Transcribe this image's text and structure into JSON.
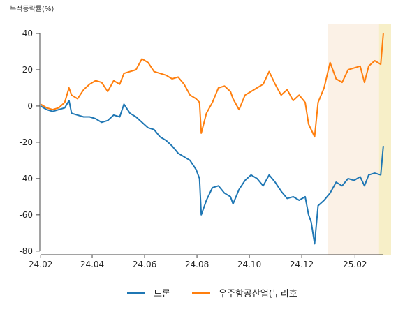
{
  "chart_data": {
    "type": "line",
    "y_unit_label": "누적등락률(%)",
    "x_tick_labels": [
      "24.02",
      "24.04",
      "24.06",
      "24.08",
      "24.10",
      "24.12",
      "25.02"
    ],
    "y_ticks": [
      40,
      20,
      0,
      -20,
      -40,
      -60,
      -80
    ],
    "xlim": [
      "2024-01-31",
      "2025-03-15"
    ],
    "ylim": [
      -82,
      45
    ],
    "grid": false,
    "legend_position": "bottom",
    "highlight_bands": [
      {
        "from": "2024-12-31",
        "to": "2025-03-15",
        "color": "#fbf1e6"
      },
      {
        "from": "2025-03-01",
        "to": "2025-03-15",
        "color": "#f7efc8"
      }
    ],
    "series": [
      {
        "name": "드론",
        "color": "#1f77b4",
        "points": [
          [
            "2024-02-01",
            0
          ],
          [
            "2024-02-08",
            -2
          ],
          [
            "2024-02-15",
            -3
          ],
          [
            "2024-02-22",
            -2
          ],
          [
            "2024-02-29",
            -1
          ],
          [
            "2024-03-05",
            3
          ],
          [
            "2024-03-08",
            -4
          ],
          [
            "2024-03-15",
            -5
          ],
          [
            "2024-03-22",
            -6
          ],
          [
            "2024-03-29",
            -6
          ],
          [
            "2024-04-05",
            -7
          ],
          [
            "2024-04-12",
            -9
          ],
          [
            "2024-04-19",
            -8
          ],
          [
            "2024-04-26",
            -5
          ],
          [
            "2024-05-03",
            -6
          ],
          [
            "2024-05-08",
            1
          ],
          [
            "2024-05-15",
            -4
          ],
          [
            "2024-05-22",
            -6
          ],
          [
            "2024-05-29",
            -9
          ],
          [
            "2024-06-05",
            -12
          ],
          [
            "2024-06-12",
            -13
          ],
          [
            "2024-06-19",
            -17
          ],
          [
            "2024-06-26",
            -19
          ],
          [
            "2024-07-03",
            -22
          ],
          [
            "2024-07-10",
            -26
          ],
          [
            "2024-07-17",
            -28
          ],
          [
            "2024-07-24",
            -30
          ],
          [
            "2024-07-31",
            -35
          ],
          [
            "2024-08-04",
            -40
          ],
          [
            "2024-08-06",
            -60
          ],
          [
            "2024-08-12",
            -52
          ],
          [
            "2024-08-19",
            -45
          ],
          [
            "2024-08-26",
            -44
          ],
          [
            "2024-09-02",
            -48
          ],
          [
            "2024-09-09",
            -50
          ],
          [
            "2024-09-12",
            -54
          ],
          [
            "2024-09-19",
            -46
          ],
          [
            "2024-09-26",
            -41
          ],
          [
            "2024-10-03",
            -38
          ],
          [
            "2024-10-10",
            -40
          ],
          [
            "2024-10-17",
            -44
          ],
          [
            "2024-10-24",
            -38
          ],
          [
            "2024-10-31",
            -42
          ],
          [
            "2024-11-07",
            -47
          ],
          [
            "2024-11-14",
            -51
          ],
          [
            "2024-11-21",
            -50
          ],
          [
            "2024-11-28",
            -52
          ],
          [
            "2024-12-05",
            -50
          ],
          [
            "2024-12-09",
            -60
          ],
          [
            "2024-12-12",
            -64
          ],
          [
            "2024-12-16",
            -76
          ],
          [
            "2024-12-20",
            -55
          ],
          [
            "2024-12-27",
            -52
          ],
          [
            "2025-01-03",
            -48
          ],
          [
            "2025-01-10",
            -42
          ],
          [
            "2025-01-17",
            -44
          ],
          [
            "2025-01-24",
            -40
          ],
          [
            "2025-01-31",
            -41
          ],
          [
            "2025-02-07",
            -39
          ],
          [
            "2025-02-12",
            -44
          ],
          [
            "2025-02-17",
            -38
          ],
          [
            "2025-02-24",
            -37
          ],
          [
            "2025-03-03",
            -38
          ],
          [
            "2025-03-06",
            -22
          ]
        ]
      },
      {
        "name": "우주항공산업(누리호",
        "color": "#ff7f0e",
        "points": [
          [
            "2024-02-01",
            1
          ],
          [
            "2024-02-08",
            -1
          ],
          [
            "2024-02-15",
            -2
          ],
          [
            "2024-02-22",
            -1
          ],
          [
            "2024-02-29",
            2
          ],
          [
            "2024-03-05",
            10
          ],
          [
            "2024-03-08",
            6
          ],
          [
            "2024-03-15",
            4
          ],
          [
            "2024-03-22",
            9
          ],
          [
            "2024-03-29",
            12
          ],
          [
            "2024-04-05",
            14
          ],
          [
            "2024-04-12",
            13
          ],
          [
            "2024-04-19",
            8
          ],
          [
            "2024-04-26",
            14
          ],
          [
            "2024-05-03",
            12
          ],
          [
            "2024-05-08",
            18
          ],
          [
            "2024-05-15",
            19
          ],
          [
            "2024-05-22",
            20
          ],
          [
            "2024-05-29",
            26
          ],
          [
            "2024-06-05",
            24
          ],
          [
            "2024-06-12",
            19
          ],
          [
            "2024-06-19",
            18
          ],
          [
            "2024-06-26",
            17
          ],
          [
            "2024-07-03",
            15
          ],
          [
            "2024-07-10",
            16
          ],
          [
            "2024-07-17",
            12
          ],
          [
            "2024-07-24",
            6
          ],
          [
            "2024-07-31",
            4
          ],
          [
            "2024-08-04",
            2
          ],
          [
            "2024-08-06",
            -15
          ],
          [
            "2024-08-12",
            -4
          ],
          [
            "2024-08-19",
            2
          ],
          [
            "2024-08-26",
            10
          ],
          [
            "2024-09-02",
            11
          ],
          [
            "2024-09-09",
            8
          ],
          [
            "2024-09-12",
            4
          ],
          [
            "2024-09-19",
            -2
          ],
          [
            "2024-09-26",
            6
          ],
          [
            "2024-10-03",
            8
          ],
          [
            "2024-10-10",
            10
          ],
          [
            "2024-10-17",
            12
          ],
          [
            "2024-10-24",
            19
          ],
          [
            "2024-10-31",
            12
          ],
          [
            "2024-11-07",
            6
          ],
          [
            "2024-11-14",
            9
          ],
          [
            "2024-11-21",
            3
          ],
          [
            "2024-11-28",
            6
          ],
          [
            "2024-12-05",
            2
          ],
          [
            "2024-12-09",
            -10
          ],
          [
            "2024-12-12",
            -13
          ],
          [
            "2024-12-16",
            -17
          ],
          [
            "2024-12-20",
            2
          ],
          [
            "2024-12-27",
            10
          ],
          [
            "2025-01-03",
            24
          ],
          [
            "2025-01-10",
            15
          ],
          [
            "2025-01-17",
            13
          ],
          [
            "2025-01-24",
            20
          ],
          [
            "2025-01-31",
            21
          ],
          [
            "2025-02-07",
            22
          ],
          [
            "2025-02-12",
            13
          ],
          [
            "2025-02-17",
            22
          ],
          [
            "2025-02-24",
            25
          ],
          [
            "2025-03-03",
            23
          ],
          [
            "2025-03-06",
            40
          ]
        ]
      }
    ]
  }
}
